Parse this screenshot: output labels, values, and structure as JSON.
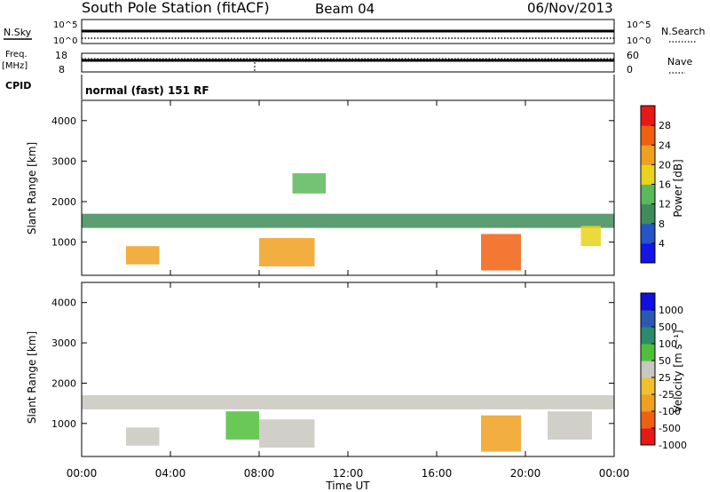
{
  "header": {
    "title": "South Pole Station (fitACF)",
    "beam": "Beam 04",
    "date": "06/Nov/2013"
  },
  "aux": {
    "nsky_label": "N.Sky",
    "nsearch_label": "N.Search",
    "freq_label": "Freq.",
    "freq_unit": "[MHz]",
    "nave_label": "Nave",
    "cpid_label": "CPID",
    "cpid_text": "normal (fast) 151 RF",
    "noise_ticks": [
      "10^5",
      "10^0"
    ],
    "freq_ticks": [
      "18",
      "8"
    ],
    "nave_ticks": [
      "60",
      "0"
    ]
  },
  "colors": {
    "background": "#ffffff",
    "power_scale": [
      "#1515e8",
      "#2555c8",
      "#3f8c5a",
      "#5cb85c",
      "#e8d41b",
      "#f0a020",
      "#f06010",
      "#e81818"
    ],
    "velocity_scale": [
      "#1010e0",
      "#2a5ab0",
      "#2e8b6a",
      "#4fbf3a",
      "#c8c8c0",
      "#f0c030",
      "#f0a020",
      "#f06010",
      "#e81818"
    ]
  },
  "chart_data": [
    {
      "type": "heatmap",
      "title": "",
      "xlabel": "Time UT",
      "ylabel": "Slant Range [km]",
      "xticks": [
        "00:00",
        "04:00",
        "08:00",
        "12:00",
        "16:00",
        "20:00",
        "00:00"
      ],
      "yticks": [
        "1000",
        "2000",
        "3000",
        "4000"
      ],
      "xlim": [
        0,
        24
      ],
      "ylim": [
        180,
        4500
      ],
      "colorbar": {
        "label": "Power [dB]",
        "ticks": [
          "4",
          "8",
          "12",
          "16",
          "20",
          "24",
          "28"
        ],
        "range": [
          0,
          30
        ]
      },
      "echo_regions": [
        {
          "t": [
            0.0,
            24.0
          ],
          "r": [
            1350,
            1700
          ],
          "value": 10
        },
        {
          "t": [
            2.0,
            3.5
          ],
          "r": [
            450,
            900
          ],
          "value": 20
        },
        {
          "t": [
            8.0,
            10.5
          ],
          "r": [
            400,
            1100
          ],
          "value": 22
        },
        {
          "t": [
            18.0,
            19.8
          ],
          "r": [
            300,
            1200
          ],
          "value": 24
        },
        {
          "t": [
            9.5,
            11.0
          ],
          "r": [
            2200,
            2700
          ],
          "value": 14
        },
        {
          "t": [
            22.5,
            23.4
          ],
          "r": [
            900,
            1400
          ],
          "value": 16
        }
      ]
    },
    {
      "type": "heatmap",
      "title": "",
      "xlabel": "Time UT",
      "ylabel": "Slant Range [km]",
      "xticks": [
        "00:00",
        "04:00",
        "08:00",
        "12:00",
        "16:00",
        "20:00",
        "00:00"
      ],
      "yticks": [
        "1000",
        "2000",
        "3000",
        "4000"
      ],
      "xlim": [
        0,
        24
      ],
      "ylim": [
        180,
        4500
      ],
      "colorbar": {
        "label": "Velocity [m s⁻¹]",
        "ticks": [
          "1000",
          "500",
          "100",
          "50",
          "25",
          "-25",
          "-100",
          "-500",
          "-1000"
        ],
        "range": [
          -1000,
          1000
        ]
      },
      "echo_regions": [
        {
          "t": [
            0.0,
            24.0
          ],
          "r": [
            1350,
            1700
          ],
          "value": 0
        },
        {
          "t": [
            2.0,
            3.5
          ],
          "r": [
            450,
            900
          ],
          "value": 80
        },
        {
          "t": [
            8.0,
            10.5
          ],
          "r": [
            400,
            1100
          ],
          "value": -100
        },
        {
          "t": [
            18.0,
            19.8
          ],
          "r": [
            300,
            1200
          ],
          "value": -500
        },
        {
          "t": [
            6.5,
            8.0
          ],
          "r": [
            600,
            1300
          ],
          "value": 120
        },
        {
          "t": [
            21.0,
            23.0
          ],
          "r": [
            600,
            1300
          ],
          "value": 80
        }
      ]
    }
  ]
}
